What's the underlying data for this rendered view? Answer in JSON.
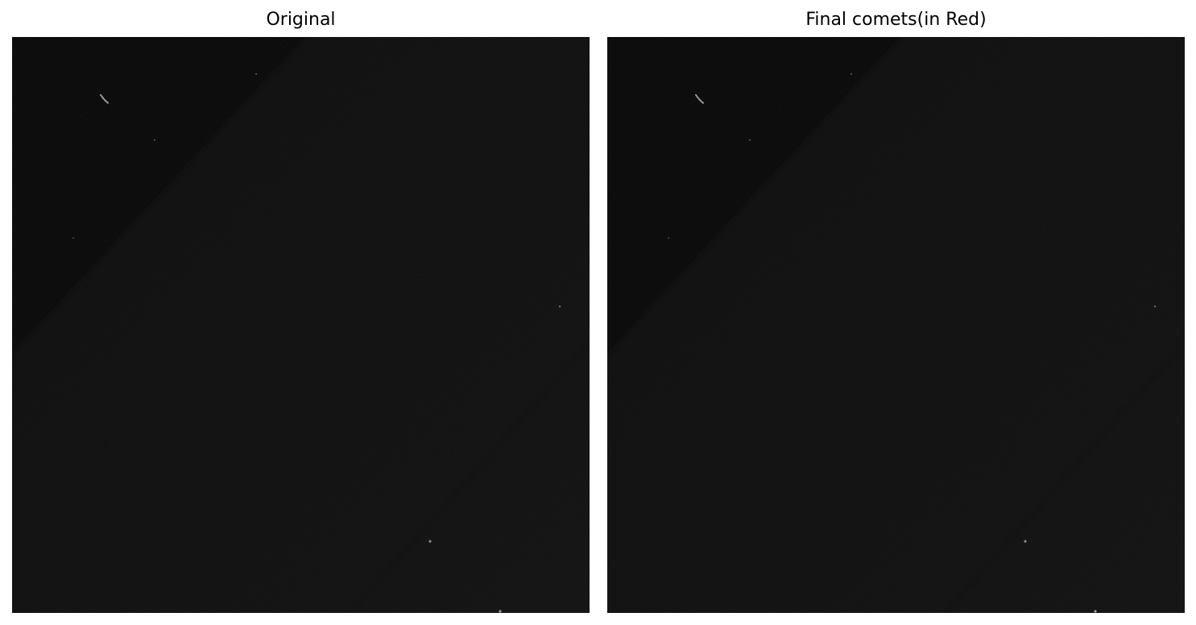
{
  "panels": [
    {
      "title": "Original",
      "image": {
        "description_icon": "dark-microscopy-image-icon",
        "background_color": "#0c0c0c",
        "dark_corner_color": "#050505"
      }
    },
    {
      "title": "Final comets(in Red)",
      "image": {
        "description_icon": "dark-microscopy-image-icon",
        "background_color": "#0c0c0c",
        "dark_corner_color": "#050505"
      }
    }
  ]
}
